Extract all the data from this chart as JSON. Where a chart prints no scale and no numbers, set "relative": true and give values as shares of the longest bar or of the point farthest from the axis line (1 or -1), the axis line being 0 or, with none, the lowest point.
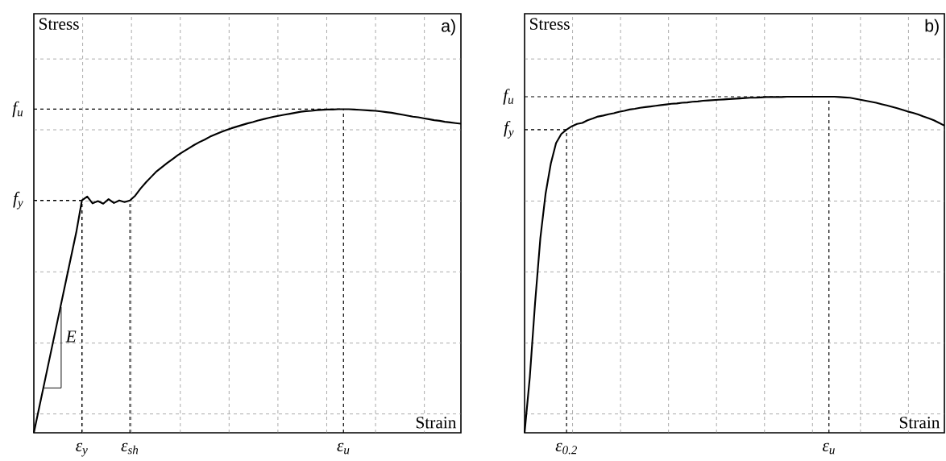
{
  "chart_data": [
    {
      "type": "line",
      "relative": true,
      "title": "a)",
      "xlabel": "Strain",
      "ylabel": "Stress",
      "color": "#000000",
      "grid": true,
      "categories": [
        null,
        null,
        null,
        null,
        null,
        null,
        null,
        null,
        null,
        "ε$_{y}$",
        null,
        null,
        null,
        null,
        null,
        null,
        null,
        null,
        "ε$_{sh}$",
        null,
        null,
        null,
        null,
        null,
        null,
        null,
        null,
        null,
        null,
        null,
        null,
        null,
        null,
        null,
        null,
        null,
        null,
        null,
        null,
        null,
        null,
        null,
        null,
        null,
        null,
        null,
        null,
        null,
        null,
        null,
        null,
        null,
        null,
        null,
        null,
        null,
        null,
        null,
        "ε$_{u}$",
        null,
        null,
        null,
        null,
        null,
        null,
        null,
        null,
        null,
        null,
        null,
        null,
        null,
        null,
        null,
        null,
        null,
        null,
        null,
        null,
        null,
        null
      ],
      "values": [
        0,
        0.078,
        0.156,
        0.234,
        0.312,
        0.39,
        0.468,
        0.546,
        0.624,
        0.718,
        0.73,
        0.709,
        0.716,
        0.708,
        0.722,
        0.71,
        0.718,
        0.713,
        0.718,
        0.733,
        0.755,
        0.774,
        0.791,
        0.808,
        0.821,
        0.834,
        0.846,
        0.858,
        0.869,
        0.879,
        0.889,
        0.898,
        0.906,
        0.915,
        0.922,
        0.929,
        0.935,
        0.941,
        0.946,
        0.951,
        0.956,
        0.96,
        0.965,
        0.969,
        0.973,
        0.977,
        0.98,
        0.983,
        0.986,
        0.989,
        0.992,
        0.994,
        0.995,
        0.997,
        0.998,
        0.999,
        0.999,
        1.0,
        1.0,
        1.0,
        0.999,
        0.998,
        0.997,
        0.996,
        0.995,
        0.993,
        0.991,
        0.989,
        0.986,
        0.983,
        0.98,
        0.977,
        0.975,
        0.972,
        0.969,
        0.966,
        0.964,
        0.961,
        0.959,
        0.957,
        0.955
      ],
      "annotations": [
        "f$_{y}$",
        "f$_{u}$",
        "E"
      ]
    },
    {
      "type": "line",
      "relative": true,
      "title": "b)",
      "xlabel": "Strain",
      "ylabel": "Stress",
      "color": "#000000",
      "grid": true,
      "categories": [
        null,
        null,
        null,
        null,
        null,
        null,
        null,
        null,
        "ε$_{0.2}$",
        null,
        null,
        null,
        null,
        null,
        null,
        null,
        null,
        null,
        null,
        null,
        null,
        null,
        null,
        null,
        null,
        null,
        null,
        null,
        null,
        null,
        null,
        null,
        null,
        null,
        null,
        null,
        null,
        null,
        null,
        null,
        null,
        null,
        null,
        null,
        null,
        null,
        null,
        null,
        null,
        null,
        null,
        null,
        null,
        null,
        null,
        null,
        null,
        null,
        "ε$_{u}$",
        null,
        null,
        null,
        null,
        null,
        null,
        null,
        null,
        null,
        null,
        null,
        null,
        null,
        null,
        null,
        null,
        null,
        null,
        null,
        null,
        null,
        null
      ],
      "values": [
        0,
        0.166,
        0.386,
        0.578,
        0.711,
        0.801,
        0.862,
        0.889,
        0.902,
        0.912,
        0.919,
        0.922,
        0.93,
        0.935,
        0.941,
        0.944,
        0.948,
        0.951,
        0.955,
        0.958,
        0.962,
        0.964,
        0.967,
        0.969,
        0.971,
        0.973,
        0.975,
        0.977,
        0.979,
        0.98,
        0.982,
        0.983,
        0.985,
        0.986,
        0.988,
        0.989,
        0.99,
        0.991,
        0.992,
        0.993,
        0.994,
        0.995,
        0.996,
        0.997,
        0.997,
        0.998,
        0.999,
        0.999,
        0.999,
        0.999,
        1.0,
        1.0,
        1.0,
        1.0,
        1.0,
        1.0,
        1.0,
        1.0,
        1.0,
        1.0,
        0.999,
        0.998,
        0.997,
        0.994,
        0.991,
        0.988,
        0.985,
        0.982,
        0.978,
        0.974,
        0.97,
        0.966,
        0.961,
        0.956,
        0.952,
        0.947,
        0.941,
        0.936,
        0.93,
        0.922,
        0.914
      ],
      "annotations": [
        "f$_{y}$",
        "f$_{u}$"
      ]
    }
  ]
}
